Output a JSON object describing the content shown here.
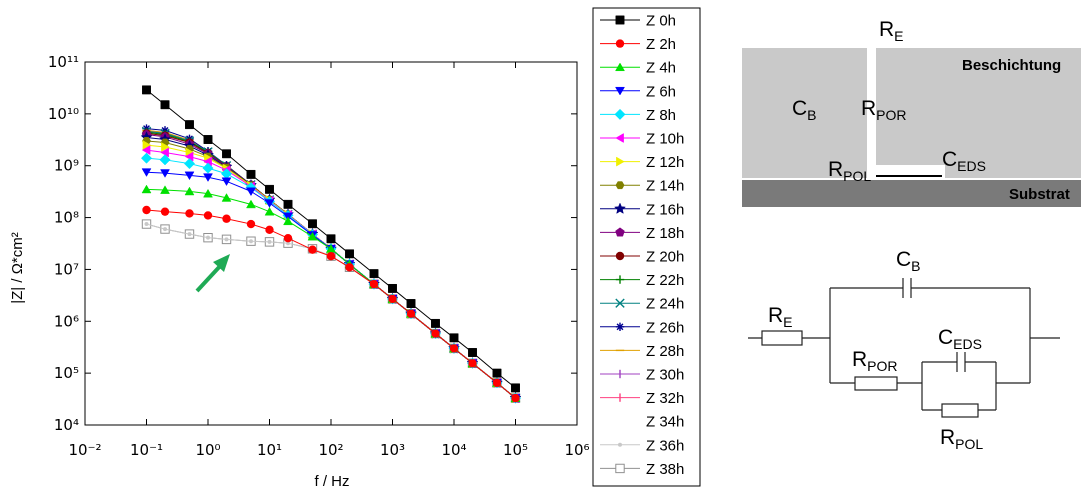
{
  "chart_data": {
    "type": "line",
    "x_label": "f / Hz",
    "y_label": "|Z| / Ω*cm²",
    "log_x": true,
    "log_y": true,
    "legend": "right",
    "x": [
      0.1,
      0.2,
      0.5,
      1,
      2,
      5,
      10,
      20,
      50,
      100,
      200,
      500,
      1000,
      2000,
      5000,
      10000,
      20000,
      50000,
      100000
    ],
    "xlim": [
      0.01,
      1000000
    ],
    "xticks": [
      {
        "value": 0.01,
        "label": "10⁻²"
      },
      {
        "value": 0.1,
        "label": "10⁻¹"
      },
      {
        "value": 1,
        "label": "10⁰"
      },
      {
        "value": 10,
        "label": "10¹"
      },
      {
        "value": 100,
        "label": "10²"
      },
      {
        "value": 1000,
        "label": "10³"
      },
      {
        "value": 10000,
        "label": "10⁴"
      },
      {
        "value": 100000,
        "label": "10⁵"
      },
      {
        "value": 1000000,
        "label": "10⁶"
      }
    ],
    "ylim": [
      10000,
      100000000000
    ],
    "yticks": [
      {
        "value": 10000,
        "label": "10⁴"
      },
      {
        "value": 100000,
        "label": "10⁵"
      },
      {
        "value": 1000000,
        "label": "10⁶"
      },
      {
        "value": 10000000,
        "label": "10⁷"
      },
      {
        "value": 100000000,
        "label": "10⁸"
      },
      {
        "value": 1000000000,
        "label": "10⁹"
      },
      {
        "value": 10000000000,
        "label": "10¹⁰"
      },
      {
        "value": 100000000000,
        "label": "10¹¹"
      }
    ],
    "series": [
      {
        "name": "Z 0h",
        "color": "#000000",
        "marker": "square",
        "values": [
          29000000000.0,
          15000000000.0,
          6200000000.0,
          3200000000.0,
          1700000000.0,
          680000000.0,
          350000000.0,
          180000000.0,
          76000000.0,
          39000000.0,
          20000000.0,
          8300000.0,
          4300000.0,
          2200000.0,
          910000.0,
          480000.0,
          250000.0,
          100000.0,
          52000.0
        ]
      },
      {
        "name": "Z 2h",
        "color": "#ff0000",
        "marker": "circle",
        "values": [
          140000000.0,
          130000000.0,
          120000000.0,
          110000000.0,
          95000000.0,
          75000000.0,
          58000000.0,
          40000000.0,
          24000000.0,
          18000000.0,
          11000000.0,
          5200000.0,
          2700000.0,
          1400000.0,
          580000.0,
          300000.0,
          155000.0,
          65000.0,
          33000.0
        ]
      },
      {
        "name": "Z 4h",
        "color": "#00e000",
        "marker": "triangle-up",
        "values": [
          350000000.0,
          340000000.0,
          320000000.0,
          290000000.0,
          240000000.0,
          180000000.0,
          130000000.0,
          85000000.0,
          43000000.0,
          25000000.0,
          12600000.0,
          5200000.0,
          2700000.0,
          1400000.0,
          580000.0,
          300000.0,
          155000.0,
          65000.0,
          33000.0
        ]
      },
      {
        "name": "Z 6h",
        "color": "#0000ff",
        "marker": "triangle-down",
        "values": [
          750000000.0,
          720000000.0,
          650000000.0,
          600000000.0,
          500000000.0,
          320000000.0,
          190000000.0,
          105000000.0,
          46000000.0,
          25000000.0,
          12600000.0,
          5200000.0,
          2700000.0,
          1400000.0,
          580000.0,
          300000.0,
          155000.0,
          65000.0,
          33000.0
        ]
      },
      {
        "name": "Z 8h",
        "color": "#00e5ff",
        "marker": "diamond",
        "values": [
          1400000000.0,
          1300000000.0,
          1100000000.0,
          900000000.0,
          700000000.0,
          380000000.0,
          205000000.0,
          110000000.0,
          47000000.0,
          25000000.0,
          12600000.0,
          5200000.0,
          2700000.0,
          1400000.0,
          580000.0,
          300000.0,
          155000.0,
          65000.0,
          33000.0
        ]
      },
      {
        "name": "Z 10h",
        "color": "#ff00ff",
        "marker": "triangle-left",
        "values": [
          2000000000.0,
          1800000000.0,
          1500000000.0,
          1200000000.0,
          820000000.0,
          400000000.0,
          210000000.0,
          112000000.0,
          48000000.0,
          25000000.0,
          12600000.0,
          5200000.0,
          2700000.0,
          1400000.0,
          580000.0,
          300000.0,
          155000.0,
          65000.0,
          33000.0
        ]
      },
      {
        "name": "Z 12h",
        "color": "#f0f000",
        "marker": "triangle-right",
        "values": [
          2500000000.0,
          2300000000.0,
          1800000000.0,
          1400000000.0,
          880000000.0,
          410000000.0,
          215000000.0,
          113000000.0,
          48000000.0,
          25000000.0,
          12600000.0,
          5200000.0,
          2700000.0,
          1400000.0,
          580000.0,
          300000.0,
          155000.0,
          65000.0,
          33000.0
        ]
      },
      {
        "name": "Z 14h",
        "color": "#808000",
        "marker": "hexagon",
        "values": [
          3000000000.0,
          2800000000.0,
          2100000000.0,
          1500000000.0,
          920000000.0,
          420000000.0,
          220000000.0,
          115000000.0,
          48000000.0,
          25000000.0,
          12600000.0,
          5200000.0,
          2700000.0,
          1400000.0,
          580000.0,
          300000.0,
          155000.0,
          65000.0,
          33000.0
        ]
      },
      {
        "name": "Z 16h",
        "color": "#000080",
        "marker": "star",
        "values": [
          3500000000.0,
          3200000000.0,
          2400000000.0,
          1600000000.0,
          950000000.0,
          420000000.0,
          220000000.0,
          115000000.0,
          48000000.0,
          25000000.0,
          12600000.0,
          5200000.0,
          2700000.0,
          1400000.0,
          580000.0,
          300000.0,
          155000.0,
          65000.0,
          33000.0
        ]
      },
      {
        "name": "Z 18h",
        "color": "#800080",
        "marker": "pentagon",
        "values": [
          4000000000.0,
          3600000000.0,
          2600000000.0,
          1700000000.0,
          970000000.0,
          425000000.0,
          220000000.0,
          115000000.0,
          48000000.0,
          25000000.0,
          12600000.0,
          5200000.0,
          2700000.0,
          1400000.0,
          580000.0,
          300000.0,
          155000.0,
          65000.0,
          33000.0
        ]
      },
      {
        "name": "Z 20h",
        "color": "#800000",
        "marker": "circle",
        "values": [
          4200000000.0,
          3800000000.0,
          2800000000.0,
          1750000000.0,
          980000000.0,
          430000000.0,
          220000000.0,
          115000000.0,
          48000000.0,
          25000000.0,
          12600000.0,
          5200000.0,
          2700000.0,
          1400000.0,
          580000.0,
          300000.0,
          155000.0,
          65000.0,
          33000.0
        ]
      },
      {
        "name": "Z 22h",
        "color": "#008000",
        "marker": "plus",
        "values": [
          4400000000.0,
          4000000000.0,
          2900000000.0,
          1800000000.0,
          990000000.0,
          430000000.0,
          220000000.0,
          115000000.0,
          48000000.0,
          25000000.0,
          12600000.0,
          5200000.0,
          2700000.0,
          1400000.0,
          580000.0,
          300000.0,
          155000.0,
          65000.0,
          33000.0
        ]
      },
      {
        "name": "Z 24h",
        "color": "#008080",
        "marker": "cross",
        "values": [
          4600000000.0,
          4200000000.0,
          3000000000.0,
          1850000000.0,
          1000000000.0,
          430000000.0,
          220000000.0,
          115000000.0,
          48000000.0,
          25000000.0,
          12600000.0,
          5200000.0,
          2700000.0,
          1400000.0,
          580000.0,
          300000.0,
          155000.0,
          65000.0,
          33000.0
        ]
      },
      {
        "name": "Z 26h",
        "color": "#000090",
        "marker": "asterisk",
        "values": [
          5200000000.0,
          4800000000.0,
          3300000000.0,
          1900000000.0,
          1020000000.0,
          430000000.0,
          220000000.0,
          115000000.0,
          48000000.0,
          25000000.0,
          12600000.0,
          5200000.0,
          2700000.0,
          1400000.0,
          580000.0,
          300000.0,
          155000.0,
          65000.0,
          33000.0
        ]
      },
      {
        "name": "Z 28h",
        "color": "#e0a000",
        "marker": "dash",
        "values": [
          4800000000.0,
          4400000000.0,
          3100000000.0,
          1850000000.0,
          1000000000.0,
          430000000.0,
          220000000.0,
          115000000.0,
          48000000.0,
          25000000.0,
          12600000.0,
          5200000.0,
          2700000.0,
          1400000.0,
          580000.0,
          300000.0,
          155000.0,
          65000.0,
          33000.0
        ]
      },
      {
        "name": "Z 30h",
        "color": "#a040c0",
        "marker": "bar",
        "values": [
          4800000000.0,
          4300000000.0,
          3100000000.0,
          1850000000.0,
          1000000000.0,
          430000000.0,
          220000000.0,
          115000000.0,
          48000000.0,
          25000000.0,
          12600000.0,
          5200000.0,
          2700000.0,
          1400000.0,
          580000.0,
          300000.0,
          155000.0,
          65000.0,
          33000.0
        ]
      },
      {
        "name": "Z 32h",
        "color": "#ff4080",
        "marker": "bar",
        "values": [
          4500000000.0,
          4100000000.0,
          3000000000.0,
          1800000000.0,
          1000000000.0,
          430000000.0,
          220000000.0,
          115000000.0,
          48000000.0,
          25000000.0,
          12600000.0,
          5200000.0,
          2700000.0,
          1400000.0,
          580000.0,
          300000.0,
          155000.0,
          65000.0,
          33000.0
        ]
      },
      {
        "name": "Z 34h",
        "color": "#ffffff",
        "marker": "none",
        "values": [
          4500000000.0,
          4100000000.0,
          3000000000.0,
          1800000000.0,
          1000000000.0,
          430000000.0,
          220000000.0,
          115000000.0,
          48000000.0,
          25000000.0,
          12600000.0,
          5200000.0,
          2700000.0,
          1400000.0,
          580000.0,
          300000.0,
          155000.0,
          65000.0,
          33000.0
        ]
      },
      {
        "name": "Z 36h",
        "color": "#c8c8c8",
        "marker": "dot",
        "values": [
          75000000.0,
          60000000.0,
          48000000.0,
          41000000.0,
          38000000.0,
          35000000.0,
          34000000.0,
          32000000.0,
          25000000.0,
          18000000.0,
          11000000.0,
          5200000.0,
          2700000.0,
          1400000.0,
          580000.0,
          300000.0,
          155000.0,
          65000.0,
          33000.0
        ]
      },
      {
        "name": "Z 38h",
        "color": "#909090",
        "marker": "square-open",
        "values": [
          75000000.0,
          60000000.0,
          48000000.0,
          41000000.0,
          38000000.0,
          35000000.0,
          34000000.0,
          32000000.0,
          25000000.0,
          18000000.0,
          11000000.0,
          5200000.0,
          2700000.0,
          1400000.0,
          580000.0,
          300000.0,
          155000.0,
          65000.0,
          33000.0
        ]
      }
    ]
  },
  "labels": {
    "coating": {
      "re": {
        "text": "R",
        "sub": "E"
      },
      "beschichtung": "Beschichtung",
      "cb": {
        "text": "C",
        "sub": "B"
      },
      "rpor": {
        "text": "R",
        "sub": "POR"
      },
      "ceds": {
        "text": "C",
        "sub": "EDS"
      },
      "rpol": {
        "text": "R",
        "sub": "POL"
      },
      "substrat": "Substrat"
    },
    "circuit": {
      "cb": {
        "text": "C",
        "sub": "B"
      },
      "re": {
        "text": "R",
        "sub": "E"
      },
      "rpor": {
        "text": "R",
        "sub": "POR"
      },
      "ceds": {
        "text": "C",
        "sub": "EDS"
      },
      "rpol": {
        "text": "R",
        "sub": "POL"
      }
    }
  }
}
